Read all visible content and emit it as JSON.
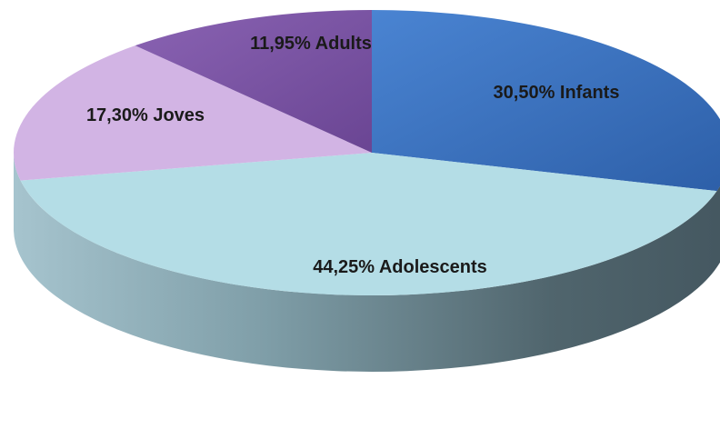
{
  "chart_data": {
    "type": "pie",
    "style": "3d",
    "title": "",
    "slices": [
      {
        "label": "Infants",
        "value": 30.5,
        "display": "30,50% Infants",
        "color": "#3a6fc0"
      },
      {
        "label": "Adolescents",
        "value": 44.25,
        "display": "44,25% Adolescents",
        "color": "#b4dde6"
      },
      {
        "label": "Joves",
        "value": 17.3,
        "display": "17,30% Joves",
        "color": "#d2b4e4"
      },
      {
        "label": "Adults",
        "value": 11.95,
        "display": "11,95% Adults",
        "color": "#7a55a3"
      }
    ],
    "legend": "none"
  }
}
